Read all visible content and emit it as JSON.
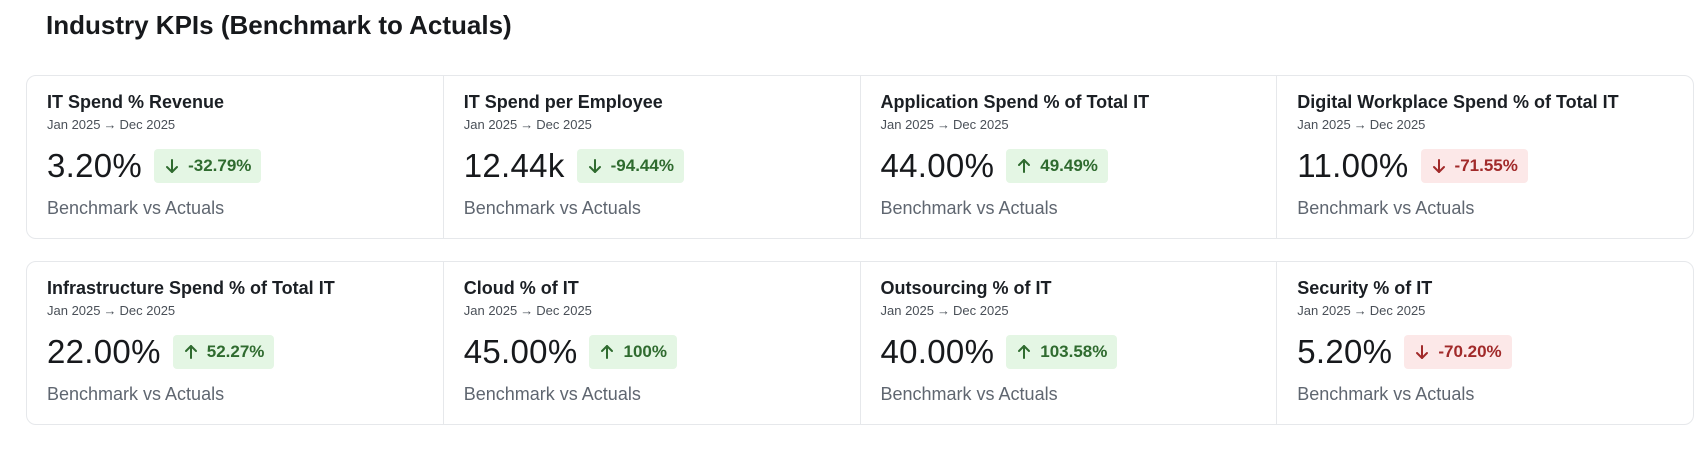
{
  "page": {
    "title": "Industry KPIs (Benchmark to Actuals)"
  },
  "colors": {
    "positive_bg": "#e4f6e4",
    "positive_text": "#2f6b2f",
    "negative_bg": "#fce8e8",
    "negative_text": "#a12a2a"
  },
  "kpis": [
    {
      "title": "IT Spend % Revenue",
      "range_start": "Jan 2025",
      "range_end": "Dec 2025",
      "value": "3.20%",
      "change": "-32.79%",
      "direction": "down",
      "tone": "positive",
      "icon": "arrow-down-icon",
      "caption": "Benchmark vs Actuals"
    },
    {
      "title": "IT Spend per Employee",
      "range_start": "Jan 2025",
      "range_end": "Dec 2025",
      "value": "12.44k",
      "change": "-94.44%",
      "direction": "down",
      "tone": "positive",
      "icon": "arrow-down-icon",
      "caption": "Benchmark vs Actuals"
    },
    {
      "title": "Application Spend % of Total IT",
      "range_start": "Jan 2025",
      "range_end": "Dec 2025",
      "value": "44.00%",
      "change": "49.49%",
      "direction": "up",
      "tone": "positive",
      "icon": "arrow-up-icon",
      "caption": "Benchmark vs Actuals"
    },
    {
      "title": "Digital Workplace Spend % of Total IT",
      "range_start": "Jan 2025",
      "range_end": "Dec 2025",
      "value": "11.00%",
      "change": "-71.55%",
      "direction": "down",
      "tone": "negative",
      "icon": "arrow-down-icon",
      "caption": "Benchmark vs Actuals"
    },
    {
      "title": "Infrastructure Spend % of Total IT",
      "range_start": "Jan 2025",
      "range_end": "Dec 2025",
      "value": "22.00%",
      "change": "52.27%",
      "direction": "up",
      "tone": "positive",
      "icon": "arrow-up-icon",
      "caption": "Benchmark vs Actuals"
    },
    {
      "title": "Cloud % of IT",
      "range_start": "Jan 2025",
      "range_end": "Dec 2025",
      "value": "45.00%",
      "change": "100%",
      "direction": "up",
      "tone": "positive",
      "icon": "arrow-up-icon",
      "caption": "Benchmark vs Actuals"
    },
    {
      "title": "Outsourcing % of IT",
      "range_start": "Jan 2025",
      "range_end": "Dec 2025",
      "value": "40.00%",
      "change": "103.58%",
      "direction": "up",
      "tone": "positive",
      "icon": "arrow-up-icon",
      "caption": "Benchmark vs Actuals"
    },
    {
      "title": "Security % of IT",
      "range_start": "Jan 2025",
      "range_end": "Dec 2025",
      "value": "5.20%",
      "change": "-70.20%",
      "direction": "down",
      "tone": "negative",
      "icon": "arrow-down-icon",
      "caption": "Benchmark vs Actuals"
    }
  ]
}
